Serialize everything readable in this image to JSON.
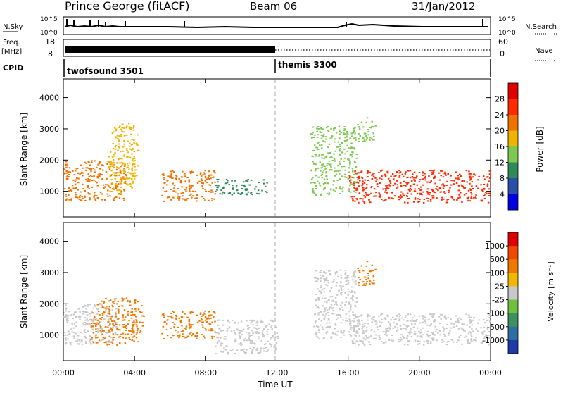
{
  "header": {
    "station": "Prince George (fitACF)",
    "beam": "Beam 06",
    "date": "31/Jan/2012"
  },
  "strip_panels": {
    "nsky_label": "N.Sky",
    "nsky_ticks": [
      "10^5",
      "10^0"
    ],
    "nsearch_label": "N.Search",
    "nsearch_ticks": [
      "10^5",
      "10^0"
    ],
    "freq_label_line1": "Freq.",
    "freq_label_line2": "[MHz]",
    "freq_ticks": [
      "18",
      "8"
    ],
    "nave_label": "Nave",
    "nave_ticks": [
      "60",
      "0"
    ],
    "cpid_label": "CPID",
    "cpid_segments": [
      {
        "name": "twofsound 3501",
        "start_hour": 0,
        "end_hour": 12
      },
      {
        "name": "themis 3300",
        "start_hour": 12,
        "end_hour": 24
      }
    ]
  },
  "x_axis": {
    "label": "Time UT",
    "ticks": [
      "00:00",
      "04:00",
      "08:00",
      "12:00",
      "16:00",
      "20:00",
      "00:00"
    ],
    "tick_hours": [
      0,
      4,
      8,
      12,
      16,
      20,
      24
    ],
    "range_hours": [
      0,
      24
    ]
  },
  "chart_data": [
    {
      "type": "heatmap",
      "panel": "power",
      "xlabel": "Time UT",
      "ylabel": "Slant Range [km]",
      "yticks": [
        "1000",
        "2000",
        "3000",
        "4000"
      ],
      "ytick_values": [
        1000,
        2000,
        3000,
        4000
      ],
      "ylim": [
        180,
        4600
      ],
      "xlim": [
        0,
        24
      ],
      "colorbar_label": "Power [dB]",
      "colorbar_ticks": [
        "4",
        "8",
        "12",
        "16",
        "20",
        "24",
        "28"
      ],
      "colorbar_range": [
        0,
        30
      ],
      "colors": [
        "#0000e0",
        "#2a4fa8",
        "#2f8a5a",
        "#7ec850",
        "#f0b400",
        "#f07000",
        "#ff2a00",
        "#e00000"
      ],
      "regions": [
        {
          "t": [
            0.0,
            3.5
          ],
          "range": [
            700,
            2000
          ],
          "value": 22
        },
        {
          "t": [
            2.5,
            4.2
          ],
          "range": [
            900,
            3200
          ],
          "value": 18
        },
        {
          "t": [
            5.5,
            8.5
          ],
          "range": [
            700,
            1700
          ],
          "value": 20
        },
        {
          "t": [
            8.5,
            11.5
          ],
          "range": [
            900,
            1400
          ],
          "value": 8
        },
        {
          "t": [
            13.8,
            16.5
          ],
          "range": [
            900,
            3100
          ],
          "value": 14
        },
        {
          "t": [
            16.0,
            24.0
          ],
          "range": [
            650,
            1700
          ],
          "value": 26
        },
        {
          "t": [
            16.5,
            17.5
          ],
          "range": [
            2600,
            3400
          ],
          "value": 12
        }
      ]
    },
    {
      "type": "heatmap",
      "panel": "velocity",
      "xlabel": "Time UT",
      "ylabel": "Slant Range [km]",
      "yticks": [
        "1000",
        "2000",
        "3000",
        "4000"
      ],
      "ytick_values": [
        1000,
        2000,
        3000,
        4000
      ],
      "ylim": [
        180,
        4600
      ],
      "xlim": [
        0,
        24
      ],
      "colorbar_label": "Velocity [m s⁻¹]",
      "colorbar_ticks": [
        "1000",
        "500",
        "100",
        "25",
        "-25",
        "-100",
        "-500",
        "-1000"
      ],
      "colors": [
        "#1c3aa8",
        "#2f6fa0",
        "#3f9060",
        "#70c040",
        "#c8c8c8",
        "#f0b800",
        "#f07800",
        "#f04800",
        "#e00000"
      ],
      "regions": [
        {
          "t": [
            0.0,
            3.0
          ],
          "range": [
            700,
            2000
          ],
          "value": "-25..25"
        },
        {
          "t": [
            1.5,
            4.5
          ],
          "range": [
            700,
            2200
          ],
          "value": -200
        },
        {
          "t": [
            5.5,
            8.5
          ],
          "range": [
            900,
            1800
          ],
          "value": -300
        },
        {
          "t": [
            8.5,
            12.0
          ],
          "range": [
            400,
            1500
          ],
          "value": "-25..25"
        },
        {
          "t": [
            14.0,
            16.5
          ],
          "range": [
            900,
            3100
          ],
          "value": "-25..25"
        },
        {
          "t": [
            16.0,
            24.0
          ],
          "range": [
            700,
            1700
          ],
          "value": "-25..25"
        },
        {
          "t": [
            16.5,
            17.5
          ],
          "range": [
            2600,
            3400
          ],
          "value": -150
        }
      ]
    }
  ]
}
